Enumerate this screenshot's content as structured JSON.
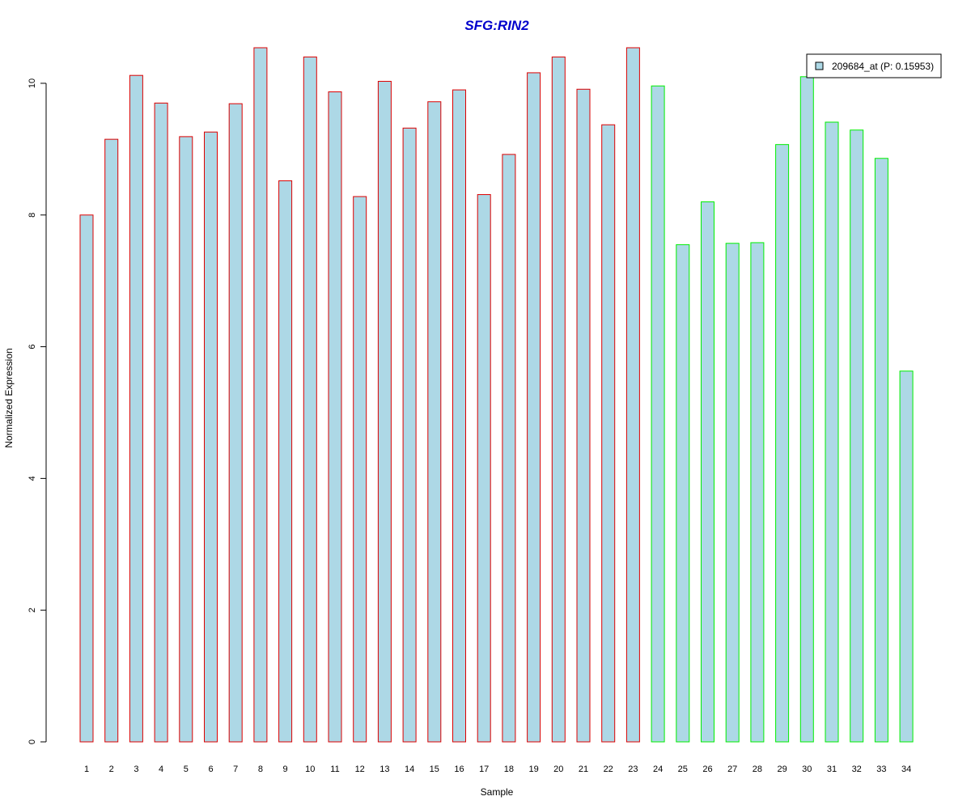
{
  "chart_data": {
    "type": "bar",
    "title": "SFG:RIN2",
    "title_color": "#0000CC",
    "xlabel": "Sample",
    "ylabel": "Normalized Expression",
    "categories": [
      "1",
      "2",
      "3",
      "4",
      "5",
      "6",
      "7",
      "8",
      "9",
      "10",
      "11",
      "12",
      "13",
      "14",
      "15",
      "16",
      "17",
      "18",
      "19",
      "20",
      "21",
      "22",
      "23",
      "24",
      "25",
      "26",
      "27",
      "28",
      "29",
      "30",
      "31",
      "32",
      "33",
      "34"
    ],
    "values": [
      8.0,
      9.15,
      10.12,
      9.7,
      9.19,
      9.26,
      9.69,
      10.54,
      8.52,
      10.4,
      9.87,
      8.28,
      10.03,
      9.32,
      9.72,
      9.9,
      8.31,
      8.92,
      10.16,
      10.4,
      9.91,
      9.37,
      10.54,
      9.96,
      7.55,
      8.2,
      7.57,
      7.58,
      9.07,
      10.1,
      9.41,
      9.29,
      8.86,
      5.63
    ],
    "groups": [
      "A",
      "A",
      "A",
      "A",
      "A",
      "A",
      "A",
      "A",
      "A",
      "A",
      "A",
      "A",
      "A",
      "A",
      "A",
      "A",
      "A",
      "A",
      "A",
      "A",
      "A",
      "A",
      "A",
      "B",
      "B",
      "B",
      "B",
      "B",
      "B",
      "B",
      "B",
      "B",
      "B",
      "B"
    ],
    "group_colors": {
      "A": "#DD0000",
      "B": "#00EE00"
    },
    "bar_fill": "#ADD8E6",
    "ylim": [
      0,
      10.54
    ],
    "yticks": [
      0,
      2,
      4,
      6,
      8,
      10
    ],
    "grid": false,
    "legend": {
      "position": "top-right",
      "entries": [
        {
          "label": "209684_at (P: 0.15953)",
          "color": "#ADD8E6"
        }
      ]
    }
  }
}
